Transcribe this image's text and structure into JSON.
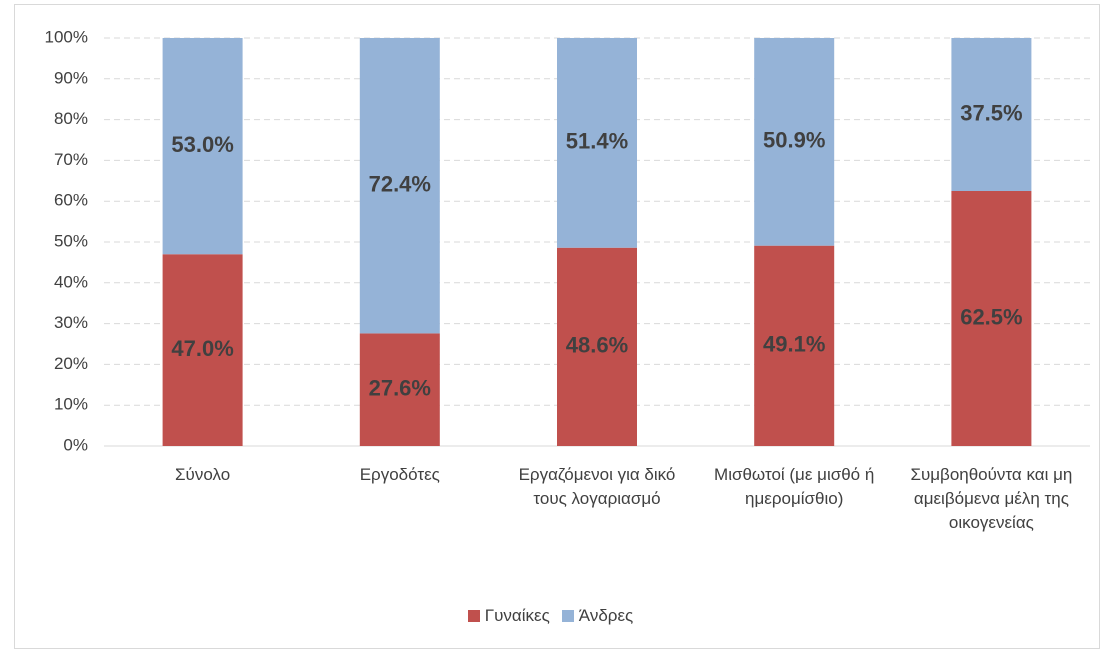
{
  "chart_data": {
    "type": "stacked_bar_100",
    "categories": [
      "Σύνολο",
      "Εργοδότες",
      "Εργαζόμενοι για δικό τους λογαριασμό",
      "Μισθωτοί (με μισθό ή ημερομίσθιο)",
      "Συμβοηθούντα και μη αμειβόμενα μέλη της οικογενείας"
    ],
    "series": [
      {
        "name": "Γυναίκες",
        "color": "#c0504d",
        "values": [
          47.0,
          27.6,
          48.6,
          49.1,
          62.5
        ],
        "value_labels": [
          "47.0%",
          "27.6%",
          "48.6%",
          "49.1%",
          "62.5%"
        ]
      },
      {
        "name": "Άνδρες",
        "color": "#95b3d7",
        "values": [
          53.0,
          72.4,
          51.4,
          50.9,
          37.5
        ],
        "value_labels": [
          "53.0%",
          "72.4%",
          "51.4%",
          "50.9%",
          "37.5%"
        ]
      }
    ],
    "ylim": [
      0,
      100
    ],
    "yticks": [
      {
        "value": 0,
        "label": "0%"
      },
      {
        "value": 10,
        "label": "10%"
      },
      {
        "value": 20,
        "label": "20%"
      },
      {
        "value": 30,
        "label": "30%"
      },
      {
        "value": 40,
        "label": "40%"
      },
      {
        "value": 50,
        "label": "50%"
      },
      {
        "value": 60,
        "label": "60%"
      },
      {
        "value": 70,
        "label": "70%"
      },
      {
        "value": 80,
        "label": "80%"
      },
      {
        "value": 90,
        "label": "90%"
      },
      {
        "value": 100,
        "label": "100%"
      }
    ],
    "grid": true,
    "legend": "bottom"
  }
}
